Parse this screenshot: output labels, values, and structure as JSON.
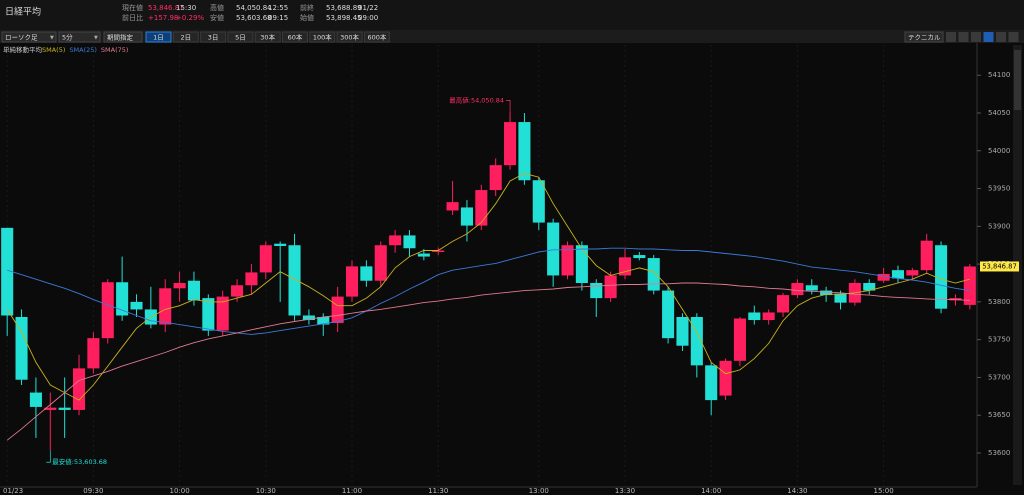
{
  "header": {
    "title": "日経平均",
    "stats": [
      [
        "現在値",
        "53,846.87",
        "15:30"
      ],
      [
        "前日比",
        "+157.98",
        "+0.29%"
      ],
      [
        "高値",
        "54,050.84",
        "12:55"
      ],
      [
        "安値",
        "53,603.68",
        "09:15"
      ],
      [
        "前終",
        "53,688.89",
        "01/22"
      ],
      [
        "始値",
        "53,898.45",
        "09:00"
      ]
    ]
  },
  "toolbar": {
    "chart_style": "ローソク足",
    "interval": "5分",
    "range": "期間指定",
    "periods": [
      "1日",
      "2日",
      "3日",
      "5日",
      "30本",
      "60本",
      "100本",
      "300本",
      "600本"
    ],
    "technical": "テクニカル"
  },
  "chart_data": {
    "type": "candlestick",
    "indicator_title": "単純移動平均",
    "categories": [
      "01/23",
      null,
      null,
      null,
      null,
      null,
      "09:30",
      null,
      null,
      null,
      null,
      null,
      "10:00",
      null,
      null,
      null,
      null,
      null,
      "10:30",
      null,
      null,
      null,
      null,
      null,
      "11:00",
      null,
      null,
      null,
      null,
      null,
      "11:30",
      null,
      null,
      null,
      null,
      null,
      null,
      "13:00",
      null,
      null,
      null,
      null,
      null,
      "13:30",
      null,
      null,
      null,
      null,
      null,
      "14:00",
      null,
      null,
      null,
      null,
      null,
      "14:30",
      null,
      null,
      null,
      null,
      null,
      "15:00",
      null,
      null,
      null,
      null,
      null,
      null
    ],
    "open": [
      53898,
      53780,
      53680,
      53657,
      53660,
      53657,
      53712,
      53752,
      53826,
      53800,
      53790,
      53770,
      53818,
      53828,
      53805,
      53762,
      53807,
      53822,
      53839,
      53877,
      53875,
      53782,
      53780,
      53772,
      53807,
      53847,
      53828,
      53875,
      53888,
      53864,
      53866,
      53921,
      53925,
      53901,
      53948,
      53981,
      54038,
      53961,
      53905,
      53835,
      53875,
      53825,
      53805,
      53835,
      53862,
      53858,
      53815,
      53780,
      53780,
      53716,
      53676,
      53722,
      53786,
      53776,
      53786,
      53809,
      53822,
      53815,
      53811,
      53799,
      53825,
      53828,
      53842,
      53835,
      53842,
      53875,
      53802,
      53796
    ],
    "high": [
      53898,
      53790,
      53700,
      53680,
      53700,
      53730,
      53760,
      53830,
      53860,
      53810,
      53820,
      53830,
      53840,
      53840,
      53810,
      53815,
      53830,
      53850,
      53880,
      53880,
      53890,
      53790,
      53785,
      53820,
      53855,
      53855,
      53880,
      53895,
      53895,
      53870,
      53872,
      53960,
      53935,
      53955,
      53990,
      54050.84,
      54050,
      53965,
      53910,
      53880,
      53880,
      53830,
      53840,
      53870,
      53866,
      53862,
      53820,
      53785,
      53785,
      53720,
      53725,
      53780,
      53795,
      53790,
      53812,
      53830,
      53830,
      53820,
      53815,
      53830,
      53830,
      53845,
      53848,
      53845,
      53890,
      53880,
      53810,
      53850
    ],
    "low": [
      53755,
      53690,
      53620,
      53603.68,
      53620,
      53650,
      53705,
      53745,
      53775,
      53780,
      53765,
      53760,
      53800,
      53795,
      53755,
      53755,
      53800,
      53810,
      53830,
      53800,
      53775,
      53770,
      53755,
      53760,
      53800,
      53820,
      53820,
      53865,
      53860,
      53855,
      53862,
      53915,
      53880,
      53895,
      53940,
      53975,
      53955,
      53895,
      53820,
      53830,
      53815,
      53780,
      53800,
      53830,
      53855,
      53810,
      53745,
      53735,
      53700,
      53650,
      53670,
      53715,
      53770,
      53770,
      53780,
      53805,
      53810,
      53800,
      53790,
      53795,
      53810,
      53825,
      53825,
      53830,
      53838,
      53785,
      53795,
      53790
    ],
    "close": [
      53782,
      53697,
      53661,
      53660,
      53657,
      53712,
      53752,
      53826,
      53782,
      53790,
      53770,
      53818,
      53825,
      53802,
      53762,
      53807,
      53822,
      53839,
      53875,
      53874,
      53782,
      53776,
      53770,
      53807,
      53847,
      53828,
      53875,
      53888,
      53871,
      53860,
      53868,
      53932,
      53901,
      53948,
      53981,
      54038,
      53961,
      53905,
      53835,
      53875,
      53825,
      53805,
      53835,
      53859,
      53858,
      53815,
      53752,
      53742,
      53716,
      53670,
      53722,
      53778,
      53776,
      53786,
      53809,
      53825,
      53815,
      53809,
      53799,
      53825,
      53815,
      53837,
      53831,
      53842,
      53881,
      53791,
      53805,
      53846.87
    ],
    "up_color": "#ff1f5f",
    "down_color": "#22e0d6",
    "series": [
      {
        "name": "SMA(5)",
        "color": "#c9b21c",
        "values": [
          53790,
          53760,
          53720,
          53690,
          53680,
          53670,
          53690,
          53715,
          53740,
          53765,
          53780,
          53790,
          53795,
          53803,
          53800,
          53800,
          53805,
          53810,
          53825,
          53840,
          53830,
          53820,
          53808,
          53795,
          53795,
          53805,
          53820,
          53845,
          53860,
          53868,
          53868,
          53880,
          53890,
          53905,
          53930,
          53960,
          53970,
          53965,
          53930,
          53900,
          53870,
          53848,
          53835,
          53840,
          53845,
          53840,
          53820,
          53790,
          53760,
          53720,
          53705,
          53710,
          53725,
          53745,
          53775,
          53795,
          53805,
          53810,
          53810,
          53812,
          53815,
          53820,
          53825,
          53830,
          53838,
          53830,
          53825,
          53830
        ]
      },
      {
        "name": "SMA(25)",
        "color": "#3b7ad8",
        "values": [
          53842,
          53836,
          53830,
          53824,
          53818,
          53811,
          53803,
          53796,
          53789,
          53782,
          53775,
          53773,
          53770,
          53767,
          53764,
          53761,
          53759,
          53757,
          53759,
          53762,
          53765,
          53768,
          53771,
          53774,
          53779,
          53788,
          53798,
          53807,
          53817,
          53826,
          53836,
          53842,
          53845,
          53848,
          53851,
          53856,
          53861,
          53866,
          53869,
          53869,
          53870,
          53870,
          53871,
          53871,
          53870,
          53870,
          53869,
          53868,
          53868,
          53866,
          53864,
          53862,
          53860,
          53857,
          53854,
          53850,
          53846,
          53844,
          53842,
          53840,
          53837,
          53834,
          53831,
          53829,
          53826,
          53822,
          53818,
          53815
        ]
      },
      {
        "name": "SMA(75)",
        "color": "#e07a90",
        "values": [
          53617,
          53632,
          53648,
          53664,
          53680,
          53696,
          53702,
          53708,
          53715,
          53721,
          53727,
          53733,
          53740,
          53746,
          53751,
          53755,
          53759,
          53763,
          53767,
          53771,
          53774,
          53777,
          53780,
          53782,
          53785,
          53788,
          53790,
          53793,
          53796,
          53799,
          53801,
          53804,
          53806,
          53809,
          53811,
          53813,
          53815,
          53816,
          53817,
          53819,
          53820,
          53821,
          53822,
          53823,
          53823,
          53824,
          53824,
          53825,
          53825,
          53824,
          53823,
          53821,
          53820,
          53818,
          53817,
          53815,
          53814,
          53813,
          53812,
          53810,
          53809,
          53807,
          53806,
          53805,
          53804,
          53803,
          53803,
          53802
        ]
      }
    ],
    "annotations": [
      {
        "text": "最高値:54,050.84",
        "index": 35,
        "at": "high"
      },
      {
        "text": "最安値:53,603.68",
        "index": 3,
        "at": "low"
      }
    ],
    "last_price_label": "53,846.87",
    "ylim": [
      53555,
      54140
    ],
    "yticks": [
      53600,
      53650,
      53700,
      53750,
      53800,
      53850,
      53900,
      53950,
      54000,
      54050,
      54100
    ]
  }
}
